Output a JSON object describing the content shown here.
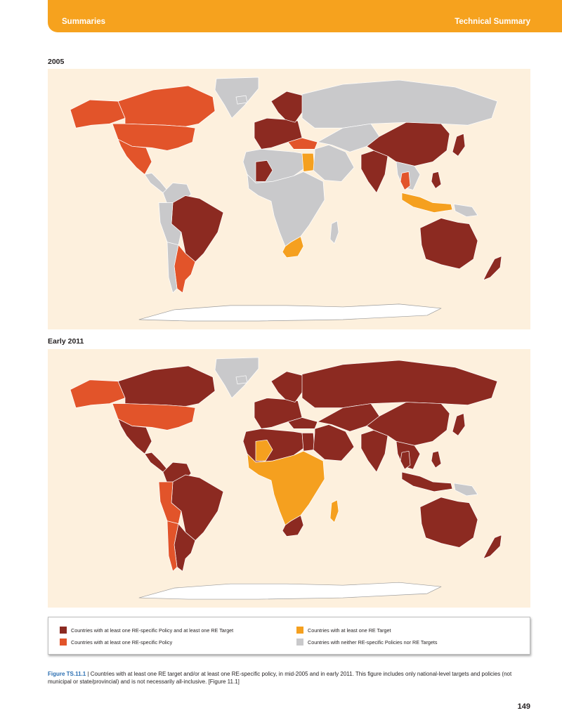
{
  "header": {
    "left": "Summaries",
    "right": "Technical Summary"
  },
  "colors": {
    "header_bar": "#f6a21e",
    "ocean": "#fdf0dd",
    "policy_and_target": "#8c2a21",
    "policy_only": "#e2542a",
    "target_only": "#f5a01f",
    "neither": "#c9c9cb",
    "antarctica": "#ffffff"
  },
  "maps": [
    {
      "label": "2005",
      "regions": [
        {
          "name": "canada",
          "status": "policy_only"
        },
        {
          "name": "usa",
          "status": "policy_only"
        },
        {
          "name": "alaska",
          "status": "policy_only"
        },
        {
          "name": "mexico",
          "status": "policy_only"
        },
        {
          "name": "central-america",
          "status": "neither"
        },
        {
          "name": "greenland",
          "status": "neither"
        },
        {
          "name": "colombia-venezuela",
          "status": "neither"
        },
        {
          "name": "brazil",
          "status": "policy_and_target"
        },
        {
          "name": "peru-bolivia",
          "status": "neither"
        },
        {
          "name": "argentina",
          "status": "policy_only"
        },
        {
          "name": "chile",
          "status": "neither"
        },
        {
          "name": "western-europe",
          "status": "policy_and_target"
        },
        {
          "name": "scandinavia",
          "status": "policy_and_target"
        },
        {
          "name": "iceland",
          "status": "neither"
        },
        {
          "name": "turkey",
          "status": "policy_only"
        },
        {
          "name": "russia",
          "status": "neither"
        },
        {
          "name": "north-africa",
          "status": "neither"
        },
        {
          "name": "mali",
          "status": "policy_and_target"
        },
        {
          "name": "egypt",
          "status": "target_only"
        },
        {
          "name": "sub-saharan-africa",
          "status": "neither"
        },
        {
          "name": "south-africa",
          "status": "target_only"
        },
        {
          "name": "madagascar",
          "status": "neither"
        },
        {
          "name": "middle-east",
          "status": "neither"
        },
        {
          "name": "central-asia",
          "status": "neither"
        },
        {
          "name": "india",
          "status": "policy_and_target"
        },
        {
          "name": "china",
          "status": "policy_and_target"
        },
        {
          "name": "japan",
          "status": "policy_and_target"
        },
        {
          "name": "southeast-asia",
          "status": "neither"
        },
        {
          "name": "thailand",
          "status": "policy_only"
        },
        {
          "name": "indonesia",
          "status": "target_only"
        },
        {
          "name": "philippines",
          "status": "policy_and_target"
        },
        {
          "name": "australia",
          "status": "policy_and_target"
        },
        {
          "name": "new-zealand",
          "status": "policy_and_target"
        },
        {
          "name": "new-guinea",
          "status": "neither"
        },
        {
          "name": "antarctica",
          "status": "antarctica"
        }
      ]
    },
    {
      "label": "Early 2011",
      "regions": [
        {
          "name": "canada",
          "status": "policy_and_target"
        },
        {
          "name": "usa",
          "status": "policy_only"
        },
        {
          "name": "alaska",
          "status": "policy_only"
        },
        {
          "name": "mexico",
          "status": "policy_and_target"
        },
        {
          "name": "central-america",
          "status": "policy_and_target"
        },
        {
          "name": "greenland",
          "status": "neither"
        },
        {
          "name": "colombia-venezuela",
          "status": "policy_and_target"
        },
        {
          "name": "brazil",
          "status": "policy_and_target"
        },
        {
          "name": "peru-bolivia",
          "status": "policy_only"
        },
        {
          "name": "argentina",
          "status": "policy_and_target"
        },
        {
          "name": "chile",
          "status": "policy_only"
        },
        {
          "name": "western-europe",
          "status": "policy_and_target"
        },
        {
          "name": "scandinavia",
          "status": "policy_and_target"
        },
        {
          "name": "iceland",
          "status": "neither"
        },
        {
          "name": "turkey",
          "status": "policy_and_target"
        },
        {
          "name": "russia",
          "status": "policy_and_target"
        },
        {
          "name": "north-africa",
          "status": "policy_and_target"
        },
        {
          "name": "mali",
          "status": "target_only"
        },
        {
          "name": "egypt",
          "status": "policy_and_target"
        },
        {
          "name": "sub-saharan-africa",
          "status": "target_only"
        },
        {
          "name": "south-africa",
          "status": "policy_and_target"
        },
        {
          "name": "madagascar",
          "status": "target_only"
        },
        {
          "name": "middle-east",
          "status": "policy_and_target"
        },
        {
          "name": "central-asia",
          "status": "policy_and_target"
        },
        {
          "name": "india",
          "status": "policy_and_target"
        },
        {
          "name": "china",
          "status": "policy_and_target"
        },
        {
          "name": "japan",
          "status": "policy_and_target"
        },
        {
          "name": "southeast-asia",
          "status": "policy_and_target"
        },
        {
          "name": "thailand",
          "status": "policy_and_target"
        },
        {
          "name": "indonesia",
          "status": "policy_and_target"
        },
        {
          "name": "philippines",
          "status": "policy_and_target"
        },
        {
          "name": "australia",
          "status": "policy_and_target"
        },
        {
          "name": "new-zealand",
          "status": "policy_and_target"
        },
        {
          "name": "new-guinea",
          "status": "neither"
        },
        {
          "name": "antarctica",
          "status": "antarctica"
        }
      ]
    }
  ],
  "legend": {
    "items": [
      {
        "status": "policy_and_target",
        "label": "Countries with at least one RE-specific Policy and at least one RE Target"
      },
      {
        "status": "policy_only",
        "label": "Countries with at least one RE-specific Policy"
      },
      {
        "status": "target_only",
        "label": "Countries with at least one RE Target"
      },
      {
        "status": "neither",
        "label": "Countries with neither RE-specific Policies nor RE Targets"
      }
    ]
  },
  "caption": {
    "label": "Figure TS.11.1",
    "text": " | Countries with at least one RE target and/or at least one RE-specific policy, in mid-2005 and in early 2011. This figure includes only national-level targets and policies (not municipal or state/provincial) and is not necessarily all-inclusive. [Figure 11.1]"
  },
  "page_number": "149"
}
